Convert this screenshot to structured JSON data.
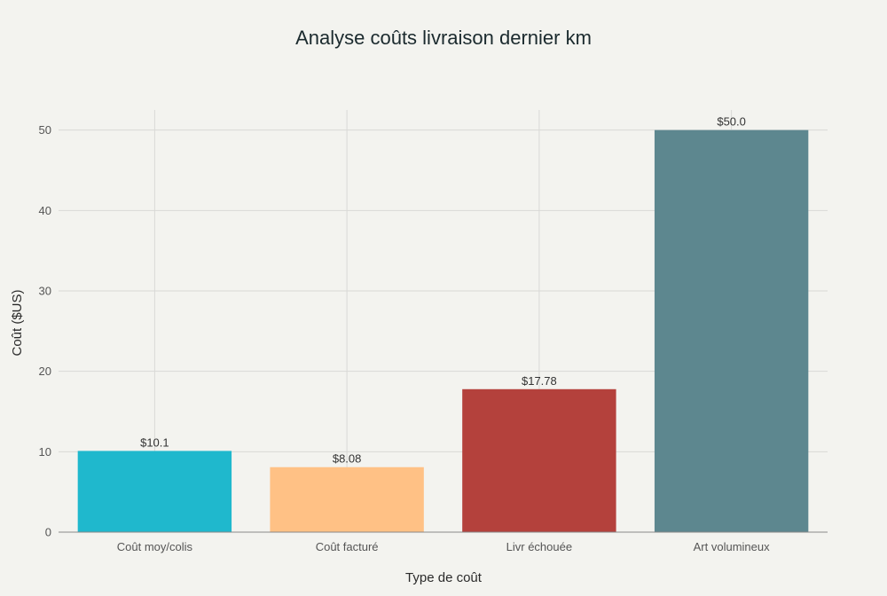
{
  "chart_data": {
    "type": "bar",
    "title": "Analyse coûts livraison dernier km",
    "xlabel": "Type de coût",
    "ylabel": "Coût ($US)",
    "categories": [
      "Coût moy/colis",
      "Coût facturé",
      "Livr échouée",
      "Art volumineux"
    ],
    "values": [
      10.1,
      8.08,
      17.78,
      50.0
    ],
    "data_labels": [
      "$10.1",
      "$8.08",
      "$17.78",
      "$50.0"
    ],
    "colors": [
      "#1fb8cd",
      "#ffc185",
      "#b4413c",
      "#5d878f"
    ],
    "ylim": [
      0,
      52.5
    ],
    "yticks": [
      0,
      10,
      20,
      30,
      40,
      50
    ],
    "grid": true,
    "legend": "none"
  }
}
